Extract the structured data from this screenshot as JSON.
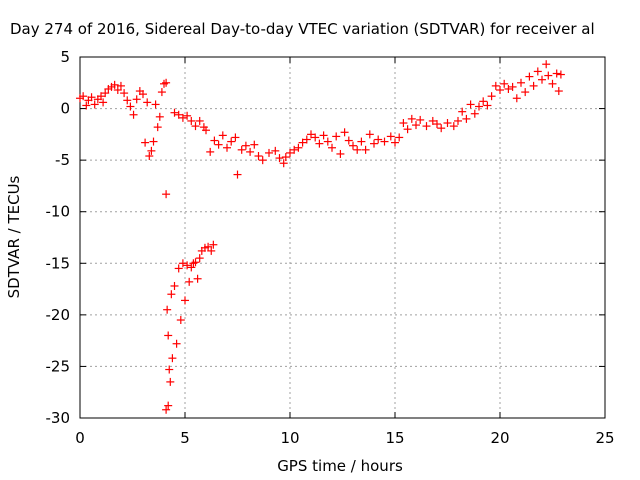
{
  "chart_data": {
    "type": "scatter",
    "title": "Day 274 of 2016, Sidereal Day-to-day VTEC variation (SDTVAR) for receiver al",
    "xlabel": "GPS time / hours",
    "ylabel": "SDTVAR / TECUs",
    "xlim": [
      0,
      25
    ],
    "ylim": [
      -30,
      5
    ],
    "xticks": [
      0,
      5,
      10,
      15,
      20,
      25
    ],
    "yticks": [
      5,
      0,
      -5,
      -10,
      -15,
      -20,
      -25,
      -30
    ],
    "grid": true,
    "marker": "+",
    "color": "#ff0000",
    "series": [
      {
        "name": "SDTVAR",
        "points": [
          [
            0.0,
            1.0
          ],
          [
            0.15,
            1.2
          ],
          [
            0.3,
            0.3
          ],
          [
            0.4,
            0.8
          ],
          [
            0.55,
            1.1
          ],
          [
            0.7,
            0.4
          ],
          [
            0.85,
            0.9
          ],
          [
            1.0,
            1.2
          ],
          [
            1.1,
            0.6
          ],
          [
            1.2,
            1.5
          ],
          [
            1.35,
            1.9
          ],
          [
            1.5,
            2.1
          ],
          [
            1.65,
            2.3
          ],
          [
            1.8,
            1.8
          ],
          [
            1.95,
            2.2
          ],
          [
            2.1,
            1.5
          ],
          [
            2.25,
            0.8
          ],
          [
            2.4,
            0.2
          ],
          [
            2.55,
            -0.6
          ],
          [
            2.7,
            0.9
          ],
          [
            2.85,
            1.7
          ],
          [
            3.0,
            1.4
          ],
          [
            3.1,
            -3.3
          ],
          [
            3.2,
            0.6
          ],
          [
            3.3,
            -4.6
          ],
          [
            3.4,
            -4.1
          ],
          [
            3.5,
            -3.2
          ],
          [
            3.6,
            0.4
          ],
          [
            3.7,
            -1.8
          ],
          [
            3.8,
            -0.8
          ],
          [
            3.9,
            1.6
          ],
          [
            4.0,
            2.4
          ],
          [
            4.1,
            2.5
          ],
          [
            4.1,
            -8.3
          ],
          [
            4.15,
            -19.5
          ],
          [
            4.2,
            -22.0
          ],
          [
            4.25,
            -25.3
          ],
          [
            4.3,
            -26.5
          ],
          [
            4.1,
            -29.2
          ],
          [
            4.2,
            -28.8
          ],
          [
            4.35,
            -18.0
          ],
          [
            4.4,
            -24.2
          ],
          [
            4.5,
            -17.2
          ],
          [
            4.6,
            -22.8
          ],
          [
            4.7,
            -15.5
          ],
          [
            4.8,
            -20.5
          ],
          [
            4.9,
            -15.0
          ],
          [
            5.0,
            -18.6
          ],
          [
            5.1,
            -15.2
          ],
          [
            5.2,
            -16.8
          ],
          [
            5.3,
            -15.4
          ],
          [
            5.4,
            -15.0
          ],
          [
            5.5,
            -14.9
          ],
          [
            5.6,
            -16.5
          ],
          [
            5.7,
            -14.5
          ],
          [
            5.8,
            -13.8
          ],
          [
            5.95,
            -13.5
          ],
          [
            6.1,
            -13.4
          ],
          [
            6.25,
            -13.8
          ],
          [
            6.35,
            -13.2
          ],
          [
            4.5,
            -0.4
          ],
          [
            4.7,
            -0.6
          ],
          [
            4.9,
            -0.9
          ],
          [
            5.1,
            -0.7
          ],
          [
            5.3,
            -1.2
          ],
          [
            5.5,
            -1.7
          ],
          [
            5.7,
            -1.2
          ],
          [
            5.9,
            -1.8
          ],
          [
            6.0,
            -2.1
          ],
          [
            6.2,
            -4.2
          ],
          [
            6.4,
            -3.1
          ],
          [
            6.6,
            -3.5
          ],
          [
            6.8,
            -2.6
          ],
          [
            7.0,
            -3.8
          ],
          [
            7.2,
            -3.2
          ],
          [
            7.4,
            -2.8
          ],
          [
            7.5,
            -6.4
          ],
          [
            7.7,
            -4.0
          ],
          [
            7.9,
            -3.6
          ],
          [
            8.1,
            -4.2
          ],
          [
            8.3,
            -3.5
          ],
          [
            8.5,
            -4.6
          ],
          [
            8.7,
            -5.0
          ],
          [
            9.0,
            -4.3
          ],
          [
            9.3,
            -4.1
          ],
          [
            9.5,
            -4.8
          ],
          [
            9.7,
            -5.3
          ],
          [
            9.8,
            -4.7
          ],
          [
            10.0,
            -4.3
          ],
          [
            10.2,
            -4.0
          ],
          [
            10.4,
            -3.8
          ],
          [
            10.6,
            -3.3
          ],
          [
            10.8,
            -3.0
          ],
          [
            11.0,
            -2.5
          ],
          [
            11.2,
            -2.8
          ],
          [
            11.4,
            -3.4
          ],
          [
            11.6,
            -2.6
          ],
          [
            11.8,
            -3.2
          ],
          [
            12.0,
            -3.8
          ],
          [
            12.2,
            -2.7
          ],
          [
            12.4,
            -4.4
          ],
          [
            12.6,
            -2.3
          ],
          [
            12.8,
            -3.1
          ],
          [
            13.0,
            -3.6
          ],
          [
            13.2,
            -4.0
          ],
          [
            13.4,
            -3.2
          ],
          [
            13.6,
            -4.0
          ],
          [
            13.8,
            -2.5
          ],
          [
            14.0,
            -3.4
          ],
          [
            14.2,
            -3.0
          ],
          [
            14.5,
            -3.2
          ],
          [
            14.8,
            -2.7
          ],
          [
            15.0,
            -3.3
          ],
          [
            15.2,
            -2.8
          ],
          [
            15.4,
            -1.4
          ],
          [
            15.6,
            -2.0
          ],
          [
            15.8,
            -1.0
          ],
          [
            16.0,
            -1.6
          ],
          [
            16.2,
            -1.1
          ],
          [
            16.5,
            -1.7
          ],
          [
            16.8,
            -1.2
          ],
          [
            17.0,
            -1.5
          ],
          [
            17.2,
            -1.9
          ],
          [
            17.5,
            -1.4
          ],
          [
            17.8,
            -1.7
          ],
          [
            18.0,
            -1.2
          ],
          [
            18.2,
            -0.3
          ],
          [
            18.4,
            -1.0
          ],
          [
            18.6,
            0.4
          ],
          [
            18.8,
            -0.5
          ],
          [
            19.0,
            0.2
          ],
          [
            19.2,
            0.7
          ],
          [
            19.4,
            0.3
          ],
          [
            19.6,
            1.2
          ],
          [
            19.8,
            2.2
          ],
          [
            20.0,
            1.8
          ],
          [
            20.2,
            2.4
          ],
          [
            20.4,
            1.9
          ],
          [
            20.6,
            2.1
          ],
          [
            20.8,
            1.0
          ],
          [
            21.0,
            2.5
          ],
          [
            21.2,
            1.6
          ],
          [
            21.4,
            3.1
          ],
          [
            21.6,
            2.2
          ],
          [
            21.8,
            3.6
          ],
          [
            22.0,
            2.8
          ],
          [
            22.2,
            4.3
          ],
          [
            22.3,
            3.2
          ],
          [
            22.5,
            2.4
          ],
          [
            22.7,
            3.4
          ],
          [
            22.8,
            1.7
          ],
          [
            22.9,
            3.3
          ]
        ]
      }
    ]
  }
}
